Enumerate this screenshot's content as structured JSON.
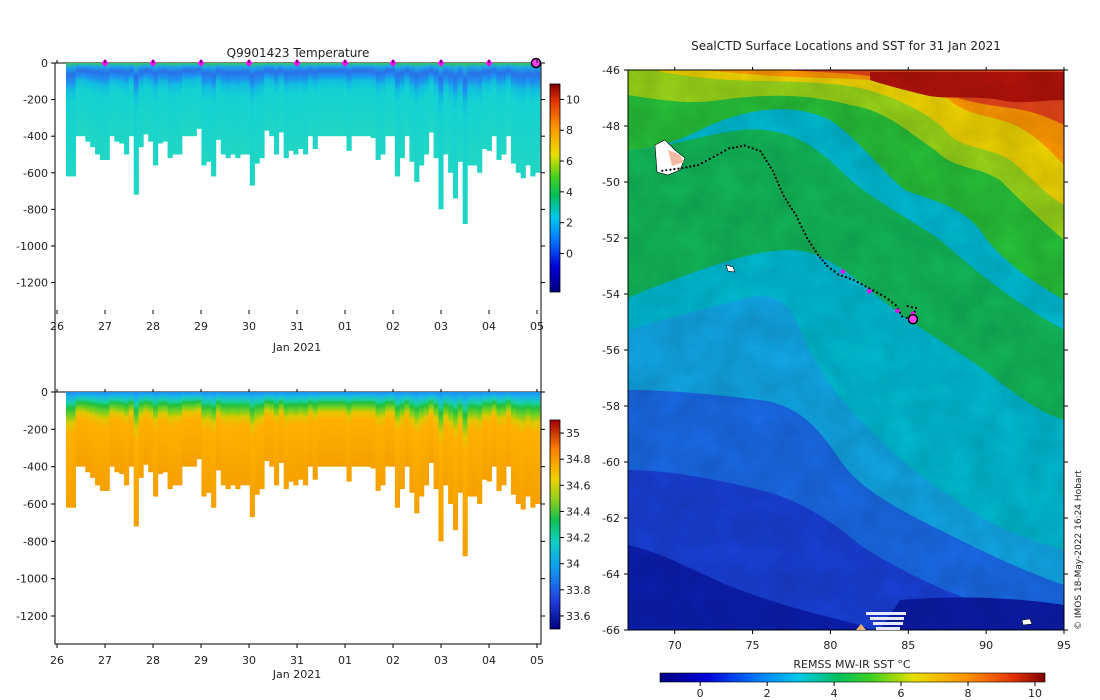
{
  "chart_data": [
    {
      "type": "heatmap",
      "title": "Q9901423  Temperature",
      "xlabel": "Jan 2021",
      "ylabel": "",
      "x_tick_labels": [
        "26",
        "27",
        "28",
        "29",
        "30",
        "31",
        "01",
        "02",
        "03",
        "04",
        "05"
      ],
      "y_ticks": [
        0,
        -200,
        -400,
        -600,
        -800,
        -1000,
        -1200
      ],
      "ylim": [
        -1350,
        0
      ],
      "colorbar_ticks": [
        0,
        2,
        4,
        6,
        8,
        10
      ],
      "colorbar_range": [
        -2.5,
        11
      ],
      "profile_markers": [
        27,
        28,
        29,
        30,
        31,
        32,
        33,
        34,
        35
      ],
      "profile_depths": [
        620,
        620,
        400,
        400,
        430,
        460,
        500,
        530,
        530,
        400,
        430,
        440,
        500,
        400,
        720,
        460,
        390,
        430,
        560,
        440,
        430,
        520,
        500,
        500,
        400,
        400,
        400,
        360,
        560,
        540,
        620,
        420,
        500,
        520,
        500,
        520,
        500,
        500,
        670,
        550,
        520,
        370,
        400,
        500,
        380,
        520,
        480,
        500,
        470,
        500,
        400,
        470,
        400,
        400,
        400,
        400,
        400,
        400,
        480,
        400,
        400,
        400,
        400,
        410,
        530,
        500,
        400,
        400,
        620,
        520,
        400,
        540,
        650,
        560,
        500,
        380,
        520,
        800,
        500,
        600,
        740,
        540,
        880,
        560,
        560,
        600,
        470,
        480,
        400,
        530,
        500,
        400,
        550,
        600,
        630,
        560,
        620,
        600
      ]
    },
    {
      "type": "heatmap",
      "title": "",
      "xlabel": "Jan 2021",
      "ylabel": "",
      "x_tick_labels": [
        "26",
        "27",
        "28",
        "29",
        "30",
        "31",
        "01",
        "02",
        "03",
        "04",
        "05"
      ],
      "y_ticks": [
        0,
        -200,
        -400,
        -600,
        -800,
        -1000,
        -1200
      ],
      "ylim": [
        -1350,
        0
      ],
      "colorbar_ticks": [
        33.6,
        33.8,
        34,
        34.2,
        34.4,
        34.6,
        34.8,
        35
      ],
      "colorbar_range": [
        33.5,
        35.1
      ]
    },
    {
      "type": "heatmap",
      "title": "SealCTD Surface Locations and SST for 31 Jan 2021",
      "xlabel": "",
      "colorbar_label": "REMSS MW-IR SST °C",
      "x_ticks": [
        70,
        75,
        80,
        85,
        90,
        95
      ],
      "y_ticks": [
        -46,
        -48,
        -50,
        -52,
        -54,
        -56,
        -58,
        -60,
        -62,
        -64,
        -66
      ],
      "xlim": [
        67,
        95
      ],
      "ylim": [
        -66,
        -46
      ],
      "colorbar_ticks": [
        0,
        2,
        4,
        6,
        8,
        10
      ],
      "colorbar_range": [
        -1.2,
        10.3
      ],
      "track": [
        [
          69.2,
          -49.6
        ],
        [
          70.5,
          -49.5
        ],
        [
          71.5,
          -49.4
        ],
        [
          72.5,
          -49.1
        ],
        [
          73.5,
          -48.8
        ],
        [
          74.5,
          -48.7
        ],
        [
          75.5,
          -48.9
        ],
        [
          76.3,
          -49.6
        ],
        [
          77,
          -50.5
        ],
        [
          77.8,
          -51.2
        ],
        [
          78.5,
          -52
        ],
        [
          79.2,
          -52.6
        ],
        [
          79.8,
          -53
        ],
        [
          80.5,
          -53.3
        ],
        [
          81.5,
          -53.5
        ],
        [
          82.5,
          -53.8
        ],
        [
          83.5,
          -54.1
        ],
        [
          84.2,
          -54.4
        ],
        [
          84.6,
          -54.8
        ],
        [
          85.2,
          -54.9
        ],
        [
          85.5,
          -54.5
        ],
        [
          84.7,
          -54.4
        ]
      ],
      "track_markers": [
        [
          80.8,
          -53.2
        ],
        [
          82.5,
          -53.9
        ],
        [
          84.3,
          -54.6
        ],
        [
          85.3,
          -54.7
        ]
      ],
      "final_position": [
        85.3,
        -54.9
      ],
      "attribution": "© IMOS 18-May-2022 16:24 Hobart"
    }
  ]
}
